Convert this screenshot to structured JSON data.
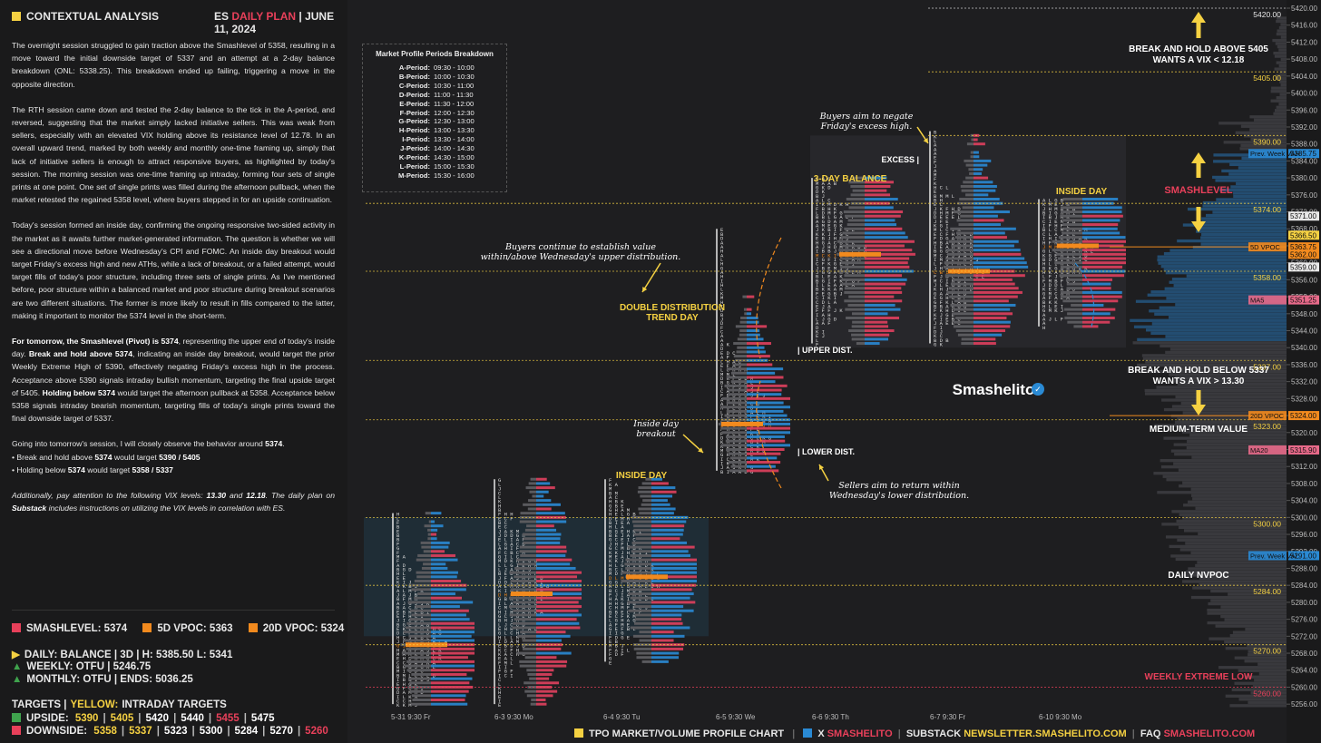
{
  "header": {
    "title": "CONTEXTUAL ANALYSIS",
    "plan_prefix": "ES",
    "plan_accent": "DAILY PLAN",
    "plan_date": "| JUNE 11, 2024"
  },
  "paragraphs": {
    "p1": "The overnight session struggled to gain traction above the Smashlevel of 5358, resulting in a move toward the initial downside target of 5337 and an attempt at a 2-day balance breakdown (ONL: 5338.25). This breakdown ended up failing, triggering a move in the opposite direction.",
    "p2": "The RTH session came down and tested the 2-day balance to the tick in the A-period, and reversed, suggesting that the market simply lacked initiative sellers. This was weak from sellers, especially with an elevated VIX holding above its resistance level of 12.78. In an overall upward trend, marked by both weekly and monthly one-time framing up, simply that lack of initiative sellers is enough to attract responsive buyers, as highlighted by today's session. The morning session was one-time framing up intraday, forming four sets of single prints at one point. One set of single prints was filled during the afternoon pullback, when the market retested the regained 5358 level, where buyers stepped in for an upside continuation.",
    "p3": "Today's session formed an inside day, confirming the ongoing responsive two-sided activity in the market as it awaits further market-generated information. The question is whether we will see a directional move before Wednesday's CPI and FOMC. An inside day breakout would target Friday's excess high and new ATHs, while a lack of breakout, or a failed attempt, would target fills of today's poor structure, including three sets of single prints. As I've mentioned before, poor structure within a balanced market and poor structure during breakout scenarios are two different situations. The former is more likely to result in fills compared to the latter, making it important to monitor the 5374 level in the short-term.",
    "p4_a": "For tomorrow, the Smashlevel (Pivot) is 5374",
    "p4_b": ", representing the upper end of today's inside day.",
    "p4_c": "Break and hold above 5374",
    "p4_d": ", indicating an inside day breakout, would target the prior Weekly Extreme High of 5390, effectively negating Friday's excess high in the process. Acceptance above 5390 signals intraday bullish momentum, targeting the final upside target of 5405.",
    "p4_e": "Holding below 5374",
    "p4_f": "would target the afternoon pullback at 5358. Acceptance below 5358 signals intraday bearish momentum, targeting fills of today's single prints toward the final downside target of 5337.",
    "p5_a": "Going into tomorrow's session, I will closely observe the behavior around",
    "p5_b": "5374",
    "p5_c": ".",
    "b1_a": "• Break and hold above",
    "b1_b": "5374",
    "b1_c": "would target",
    "b1_d": "5390 / 5405",
    "b2_a": "• Holding below",
    "b2_b": "5374",
    "b2_c": "would target",
    "b2_d": "5358 / 5337",
    "p6_a": "Additionally, pay attention to the following VIX levels:",
    "p6_b": "13.30",
    "p6_c": "and",
    "p6_d": "12.18",
    "p6_e": ". The daily plan on",
    "p6_f": "Substack",
    "p6_g": "includes instructions on utilizing the VIX levels in correlation with ES."
  },
  "levels": {
    "smashlevel": "SMASHLEVEL: 5374",
    "vpoc5": "5D VPOC: 5363",
    "vpoc20": "20D VPOC: 5324",
    "daily": "DAILY: BALANCE  |  3D  |  H: 5385.50 L: 5341",
    "weekly": "WEEKLY: OTFU  |  5246.75",
    "monthly": "MONTHLY: OTFU  |  ENDS: 5036.25"
  },
  "targets": {
    "label": "TARGETS  |",
    "yellow": "YELLOW:",
    "intraday": "INTRADAY TARGETS",
    "upside_label": "UPSIDE:",
    "upside_values": [
      "5390",
      "5405",
      "5420",
      "5440",
      "5455",
      "5475"
    ],
    "downside_label": "DOWNSIDE:",
    "downside_values": [
      "5358",
      "5337",
      "5323",
      "5300",
      "5284",
      "5270",
      "5260"
    ]
  },
  "colors": {
    "accent_red": "#e8405a",
    "yellow": "#f5d142",
    "orange": "#f28a1e",
    "green": "#3fa34d",
    "blue": "#2a8ad4",
    "pink": "#e86a8a"
  },
  "periods_box": {
    "title": "Market Profile Periods Breakdown",
    "rows": [
      [
        "A-Period:",
        "09:30 - 10:00"
      ],
      [
        "B-Period:",
        "10:00 - 10:30"
      ],
      [
        "C-Period:",
        "10:30 - 11:00"
      ],
      [
        "D-Period:",
        "11:00 - 11:30"
      ],
      [
        "E-Period:",
        "11:30 - 12:00"
      ],
      [
        "F-Period:",
        "12:00 - 12:30"
      ],
      [
        "G-Period:",
        "12:30 - 13:00"
      ],
      [
        "H-Period:",
        "13:00 - 13:30"
      ],
      [
        "I-Period:",
        "13:30 - 14:00"
      ],
      [
        "J-Period:",
        "14:00 - 14:30"
      ],
      [
        "K-Period:",
        "14:30 - 15:00"
      ],
      [
        "L-Period:",
        "15:00 - 15:30"
      ],
      [
        "M-Period:",
        "15:30 - 16:00"
      ]
    ]
  },
  "annotations": {
    "break_above": [
      "BREAK AND HOLD ABOVE 5405",
      "WANTS A VIX < 12.18"
    ],
    "break_below": [
      "BREAK AND HOLD BELOW 5337",
      "WANTS A VIX > 13.30"
    ],
    "smashlevel": "SMASHLEVEL",
    "medium_term": "MEDIUM-TERM VALUE",
    "daily_nvpoc": "DAILY NVPOC",
    "weekly_extreme_low": "WEEKLY EXTREME LOW",
    "three_day_balance": "3-DAY BALANCE",
    "inside_day_right": "INSIDE DAY",
    "inside_day_left": "INSIDE DAY",
    "excess": "EXCESS",
    "upper_dist": "UPPER DIST.",
    "lower_dist": "LOWER DIST.",
    "double_dist": [
      "DOUBLE DISTRIBUTION",
      "TREND DAY"
    ],
    "buyers_negate": [
      "Buyers aim to negate",
      "Friday's excess high."
    ],
    "buyers_value": [
      "Buyers continue to establish value",
      "within/above Wednesday's upper distribution."
    ],
    "inside_breakout": [
      "Inside day",
      "breakout"
    ],
    "sellers_return": [
      "Sellers aim to return within",
      "Wednesday's lower distribution."
    ],
    "brand": "Smashelito"
  },
  "price_tags": {
    "prev_week_vah": "Prev. Week VAH",
    "prev_week_val": "Prev. Week VAL",
    "vpoc5": "5D VPOC",
    "vpoc20": "20D VPOC",
    "ma5": "MA5",
    "ma20": "MA20"
  },
  "footer": {
    "chart_label": "TPO MARKET/VOLUME PROFILE CHART",
    "x_label": "X",
    "x_handle": "SMASHELITO",
    "substack_label": "SUBSTACK",
    "substack_url": "NEWSLETTER.SMASHELITO.COM",
    "faq_label": "FAQ",
    "faq_url": "SMASHELITO.COM"
  },
  "chart_data": {
    "type": "market_profile",
    "y_axis": {
      "min": 5256,
      "max": 5420,
      "step": 4
    },
    "sessions": [
      "5-31  9:30 Fr",
      "6-3  9:30 Mo",
      "6-4  9:30 Tu",
      "6-5  9:30 We",
      "6-6  9:30 Th",
      "6-7  9:30 Fr",
      "6-10  9:30 Mo"
    ],
    "levels": [
      {
        "price": 5420.0,
        "label": "5420.00",
        "color": "#e8e8e8"
      },
      {
        "price": 5405.0,
        "label": "5405.00",
        "color": "#f5d142"
      },
      {
        "price": 5390.0,
        "label": "5390.00",
        "color": "#f5d142"
      },
      {
        "price": 5374.0,
        "label": "5374.00",
        "color": "#f5d142"
      },
      {
        "price": 5358.0,
        "label": "5358.00",
        "color": "#f5d142"
      },
      {
        "price": 5337.0,
        "label": "5337.00",
        "color": "#f5d142"
      },
      {
        "price": 5323.0,
        "label": "5323.00",
        "color": "#f5d142"
      },
      {
        "price": 5300.0,
        "label": "5300.00",
        "color": "#f5d142"
      },
      {
        "price": 5284.0,
        "label": "5284.00",
        "color": "#f5d142"
      },
      {
        "price": 5270.0,
        "label": "5270.00",
        "color": "#f5d142"
      },
      {
        "price": 5260.0,
        "label": "5260.00",
        "color": "#e8405a"
      }
    ],
    "price_tags": [
      {
        "price": 5371.0,
        "label": "5371.00",
        "color": "#e8e8e8"
      },
      {
        "price": 5366.5,
        "label": "5366.50",
        "color": "#f5d142"
      },
      {
        "price": 5363.75,
        "label": "5363.75",
        "color": "#f28a1e"
      },
      {
        "price": 5362.0,
        "label": "5362.00",
        "color": "#f28a1e"
      },
      {
        "price": 5359.0,
        "label": "5359.00",
        "color": "#e8e8e8"
      },
      {
        "price": 5351.25,
        "label": "5351.25",
        "color": "#e86a8a"
      },
      {
        "price": 5324.0,
        "label": "5324.00",
        "color": "#f28a1e"
      },
      {
        "price": 5315.9,
        "label": "5315.90",
        "color": "#e86a8a"
      },
      {
        "price": 5291.0,
        "label": "5291.00",
        "color": "#2a8ad4"
      },
      {
        "price": 5385.75,
        "label": "5385.75",
        "color": "#2a8ad4"
      }
    ]
  }
}
